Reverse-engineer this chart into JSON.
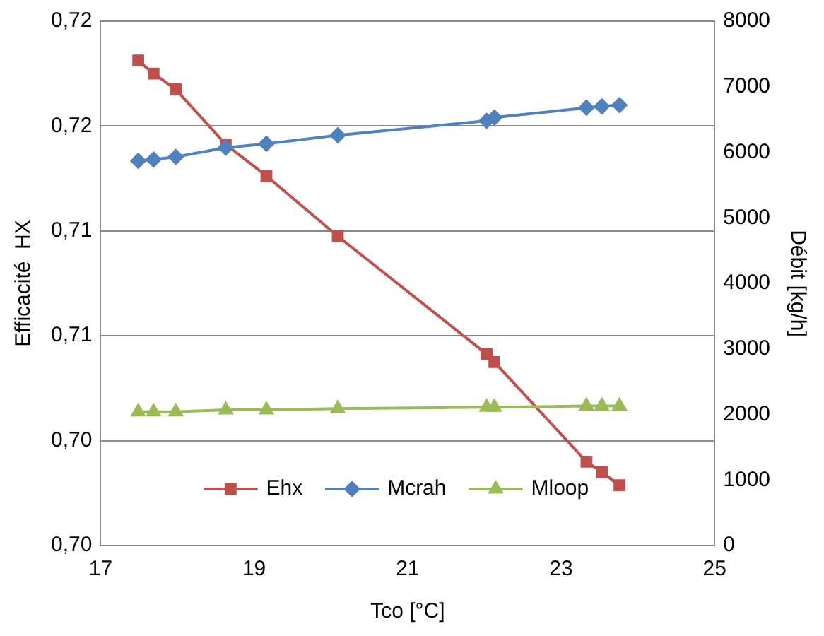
{
  "chart_data": {
    "type": "line",
    "xlabel": "Tco [°C]",
    "ylabel": "Efficacité  HX",
    "y2label": "Débit [kg/h]",
    "x": [
      17.49,
      17.69,
      17.98,
      18.63,
      19.16,
      20.09,
      22.03,
      22.13,
      23.33,
      23.53,
      23.76
    ],
    "xlim": [
      17,
      25
    ],
    "xticks": [
      17,
      19,
      21,
      23,
      25
    ],
    "ylim": [
      0.7,
      0.72
    ],
    "yticks": [
      {
        "value": 0.7,
        "label": "0,70"
      },
      {
        "value": 0.704,
        "label": "0,70"
      },
      {
        "value": 0.708,
        "label": "0,71"
      },
      {
        "value": 0.712,
        "label": "0,71"
      },
      {
        "value": 0.716,
        "label": "0,72"
      },
      {
        "value": 0.72,
        "label": "0,72"
      }
    ],
    "y2lim": [
      0,
      8000
    ],
    "y2ticks": [
      0,
      1000,
      2000,
      3000,
      4000,
      5000,
      6000,
      7000,
      8000
    ],
    "grid": "y",
    "legend": "bottom",
    "line_style": "solid",
    "series": [
      {
        "name": "Ehx",
        "color": "#c0504d",
        "marker": "square",
        "values": [
          0.7185,
          0.718,
          0.7174,
          0.7153,
          0.7141,
          0.7118,
          0.7073,
          0.707,
          0.7032,
          0.7028,
          0.7023
        ]
      },
      {
        "name": "Mcrah",
        "color": "#4f81bd",
        "marker": "diamond",
        "axis": "y2",
        "values": [
          5870,
          5890,
          5930,
          6070,
          6130,
          6260,
          6480,
          6530,
          6680,
          6700,
          6720
        ]
      },
      {
        "name": "Mloop",
        "color": "#9bbb59",
        "marker": "triangle",
        "axis": "y2",
        "values": [
          2040,
          2040,
          2040,
          2070,
          2070,
          2090,
          2110,
          2110,
          2130,
          2130,
          2130
        ]
      }
    ]
  }
}
